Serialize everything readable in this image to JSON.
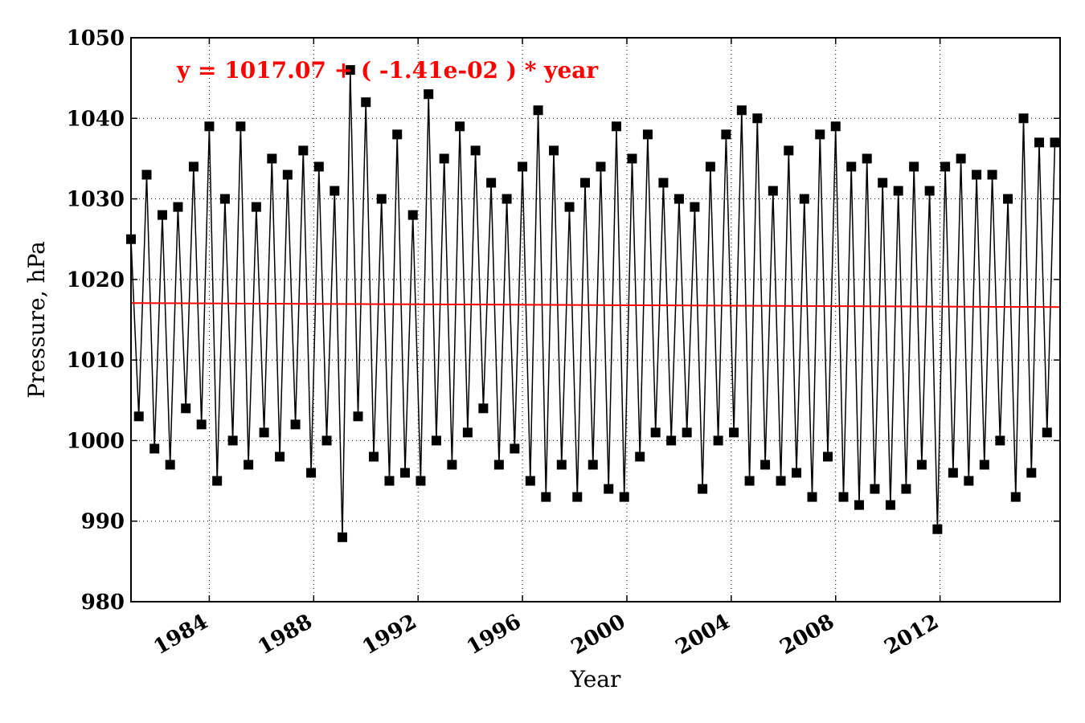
{
  "chart_data": {
    "type": "line",
    "title": "",
    "xlabel": "Year",
    "ylabel": "Pressure, hPa",
    "ylim": [
      980,
      1050
    ],
    "xlim": [
      1981.0,
      2016.6
    ],
    "y_ticks": [
      980,
      990,
      1000,
      1010,
      1020,
      1030,
      1040,
      1050
    ],
    "x_ticks": [
      1984,
      1988,
      1992,
      1996,
      2000,
      2004,
      2008,
      2012
    ],
    "y_tick_labels": [
      "980",
      "990",
      "1000",
      "1010",
      "1020",
      "1030",
      "1040",
      "1050"
    ],
    "x_tick_labels": [
      "1984",
      "1988",
      "1992",
      "1996",
      "2000",
      "2004",
      "2008",
      "2012"
    ],
    "grid": true,
    "series": [
      {
        "style": "black line with square markers",
        "color": "#000000",
        "x": [
          1981.0,
          1981.3,
          1981.6,
          1981.9,
          1982.2,
          1982.5,
          1982.8,
          1983.1,
          1983.4,
          1983.7,
          1984.0,
          1984.3,
          1984.6,
          1984.9,
          1985.2,
          1985.5,
          1985.8,
          1986.1,
          1986.4,
          1986.7,
          1987.0,
          1987.3,
          1987.6,
          1987.9,
          1988.2,
          1988.5,
          1988.8,
          1989.1,
          1989.4,
          1989.7,
          1990.0,
          1990.3,
          1990.6,
          1990.9,
          1991.2,
          1991.5,
          1991.8,
          1992.1,
          1992.4,
          1992.7,
          1993.0,
          1993.3,
          1993.6,
          1993.9,
          1994.2,
          1994.5,
          1994.8,
          1995.1,
          1995.4,
          1995.7,
          1996.0,
          1996.3,
          1996.6,
          1996.9,
          1997.2,
          1997.5,
          1997.8,
          1998.1,
          1998.4,
          1998.7,
          1999.0,
          1999.3,
          1999.6,
          1999.9,
          2000.2,
          2000.5,
          2000.8,
          2001.1,
          2001.4,
          2001.7,
          2002.0,
          2002.3,
          2002.6,
          2002.9,
          2003.2,
          2003.5,
          2003.8,
          2004.1,
          2004.4,
          2004.7,
          2005.0,
          2005.3,
          2005.6,
          2005.9,
          2006.2,
          2006.5,
          2006.8,
          2007.1,
          2007.4,
          2007.7,
          2008.0,
          2008.3,
          2008.6,
          2008.9,
          2009.2,
          2009.5,
          2009.8,
          2010.1,
          2010.4,
          2010.7,
          2011.0,
          2011.3,
          2011.6,
          2011.9,
          2012.2,
          2012.5,
          2012.8,
          2013.1,
          2013.4,
          2013.7,
          2014.0,
          2014.3,
          2014.6,
          2014.9,
          2015.2,
          2015.5,
          2015.8,
          2016.1,
          2016.4
        ],
        "values": [
          1025,
          1003,
          1033,
          999,
          1028,
          997,
          1029,
          1004,
          1034,
          1002,
          1039,
          995,
          1030,
          1000,
          1039,
          997,
          1029,
          1001,
          1035,
          998,
          1033,
          1002,
          1036,
          996,
          1034,
          1000,
          1031,
          988,
          1046,
          1003,
          1042,
          998,
          1030,
          995,
          1038,
          996,
          1028,
          995,
          1043,
          1000,
          1035,
          997,
          1039,
          1001,
          1036,
          1004,
          1032,
          997,
          1030,
          999,
          1034,
          995,
          1041,
          993,
          1036,
          997,
          1029,
          993,
          1032,
          997,
          1034,
          994,
          1039,
          993,
          1035,
          998,
          1038,
          1001,
          1032,
          1000,
          1030,
          1001,
          1029,
          994,
          1034,
          1000,
          1038,
          1001,
          1041,
          995,
          1040,
          997,
          1031,
          995,
          1036,
          996,
          1030,
          993,
          1038,
          998,
          1039,
          993,
          1034,
          992,
          1035,
          994,
          1032,
          992,
          1031,
          994,
          1034,
          997,
          1031,
          989,
          1034,
          996,
          1035,
          995,
          1033,
          997,
          1033,
          1000,
          1030,
          993,
          1040,
          996,
          1037,
          1001,
          1037
        ]
      },
      {
        "style": "red trend line",
        "color": "#ff0000",
        "intercept": 1017.07,
        "slope": -0.0141
      }
    ],
    "annotations": [
      {
        "text": "y = 1017.07 + ( -1.41e-02 ) * year",
        "color": "#ff0000",
        "placement": "top-left"
      }
    ]
  }
}
